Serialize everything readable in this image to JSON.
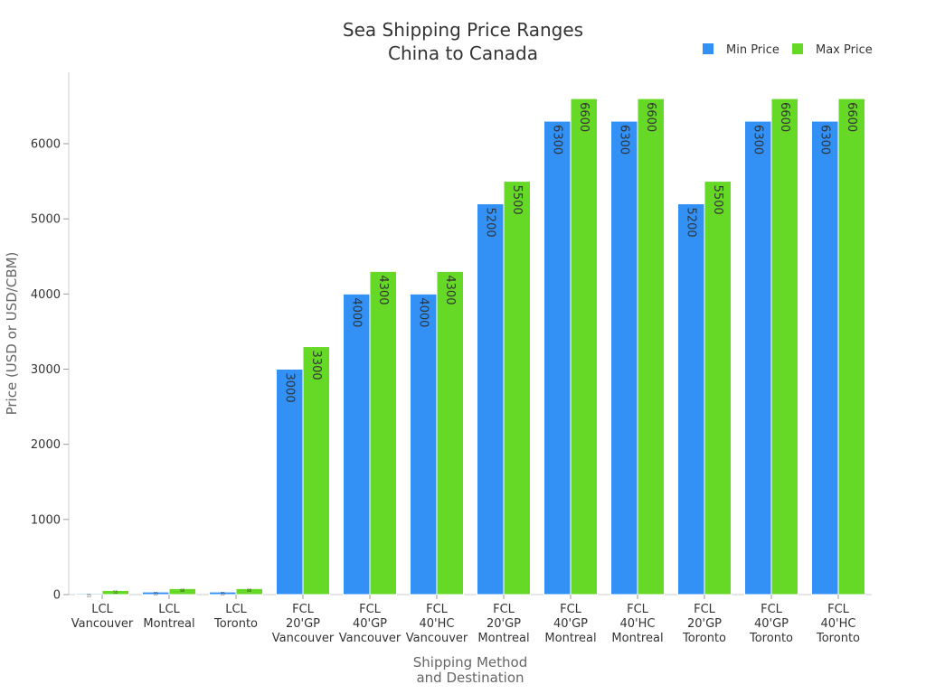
{
  "chart_data": {
    "type": "bar",
    "title": [
      "Sea Shipping Price Ranges",
      "China to Canada"
    ],
    "xlabel": [
      "Shipping Method",
      "and Destination"
    ],
    "ylabel": "Price (USD or USD/CBM)",
    "categories": [
      [
        "LCL",
        "Vancouver"
      ],
      [
        "LCL",
        "Montreal"
      ],
      [
        "LCL",
        "Toronto"
      ],
      [
        "FCL",
        "20'GP",
        "Vancouver"
      ],
      [
        "FCL",
        "40'GP",
        "Vancouver"
      ],
      [
        "FCL",
        "40'HC",
        "Vancouver"
      ],
      [
        "FCL",
        "20'GP",
        "Montreal"
      ],
      [
        "FCL",
        "40'GP",
        "Montreal"
      ],
      [
        "FCL",
        "40'HC",
        "Montreal"
      ],
      [
        "FCL",
        "20'GP",
        "Toronto"
      ],
      [
        "FCL",
        "40'GP",
        "Toronto"
      ],
      [
        "FCL",
        "40'HC",
        "Toronto"
      ]
    ],
    "series": [
      {
        "name": "Min Price",
        "color": "#3391f5",
        "values": [
          15,
          35,
          35,
          3000,
          4000,
          4000,
          5200,
          6300,
          6300,
          5200,
          6300,
          6300
        ],
        "labels": [
          "15",
          "35",
          "35",
          "3000",
          "4000",
          "4000",
          "5200",
          "6300",
          "6300",
          "5200",
          "6300",
          "6300"
        ]
      },
      {
        "name": "Max Price",
        "color": "#66d926",
        "values": [
          55,
          80,
          80,
          3300,
          4300,
          4300,
          5500,
          6600,
          6600,
          5500,
          6600,
          6600
        ],
        "labels": [
          "55",
          "80",
          "80",
          "3300",
          "4300",
          "4300",
          "5500",
          "6600",
          "6600",
          "5500",
          "6600",
          "6600"
        ]
      }
    ],
    "yticks": [
      0,
      1000,
      2000,
      3000,
      4000,
      5000,
      6000
    ],
    "ylim": [
      0,
      6950
    ],
    "grid": false,
    "legend_position": "top-right"
  }
}
